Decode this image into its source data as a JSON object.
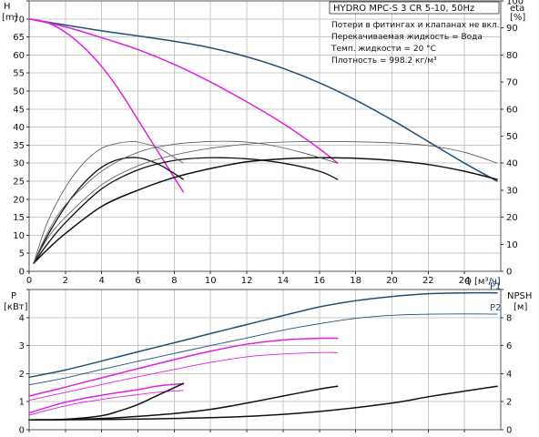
{
  "chart_data": [
    {
      "id": "head_efficiency",
      "type": "line",
      "title": "HYDRO MPC-S 3 CR 5-10, 50Hz",
      "annotations": [
        "Потери в фитингах и клапанах не вкл.",
        "Перекачиваемая жидкость = Вода",
        "Темп. жидкости = 20 °C",
        "Плотность = 998.2 кг/м³"
      ],
      "ylabel": "H",
      "yunit": "[m]",
      "y2label": "eta",
      "y2unit": "[%]",
      "xlabel": "Q",
      "xunit": "[м³/ч]",
      "xlim": [
        0,
        26
      ],
      "ylim": [
        0,
        75
      ],
      "y2lim": [
        0,
        100
      ],
      "xticks": [
        0,
        2,
        4,
        6,
        8,
        10,
        12,
        14,
        16,
        18,
        20,
        22,
        24
      ],
      "yticks": [
        0,
        5,
        10,
        15,
        20,
        25,
        30,
        35,
        40,
        45,
        50,
        55,
        60,
        65,
        70,
        75
      ],
      "ytick_labels": [
        "0",
        "5",
        "10",
        "15",
        "20",
        "25",
        "30",
        "35",
        "40",
        "45",
        "50",
        "55",
        "60",
        "65",
        "70",
        ""
      ],
      "y2ticks": [
        0,
        10,
        20,
        30,
        40,
        50,
        60,
        70,
        80,
        90,
        100
      ],
      "grid": true,
      "series": [
        {
          "color": "#1f4e79",
          "width": 1.5,
          "axis": "y",
          "points": [
            [
              0,
              70
            ],
            [
              2,
              68.3
            ],
            [
              4,
              66.7
            ],
            [
              6,
              65.3
            ],
            [
              8,
              63.8
            ],
            [
              10,
              62
            ],
            [
              12,
              59.5
            ],
            [
              14,
              56.3
            ],
            [
              16,
              52.3
            ],
            [
              18,
              47.5
            ],
            [
              20,
              42
            ],
            [
              22,
              36
            ],
            [
              24,
              30
            ],
            [
              25.8,
              25
            ]
          ]
        },
        {
          "color": "#e020e0",
          "width": 1.5,
          "axis": "y",
          "points": [
            [
              0,
              70
            ],
            [
              2,
              67.8
            ],
            [
              4,
              64.8
            ],
            [
              6,
              61.5
            ],
            [
              8,
              57.4
            ],
            [
              10,
              52.5
            ],
            [
              12,
              47
            ],
            [
              14,
              41
            ],
            [
              16,
              34
            ],
            [
              17,
              30
            ]
          ]
        },
        {
          "color": "#e020e0",
          "width": 1.5,
          "axis": "y",
          "points": [
            [
              0,
              70
            ],
            [
              1,
              69
            ],
            [
              2,
              66.3
            ],
            [
              3,
              62.2
            ],
            [
              4,
              56.8
            ],
            [
              5,
              50
            ],
            [
              6,
              42
            ],
            [
              7,
              34
            ],
            [
              8,
              26
            ],
            [
              8.5,
              22
            ]
          ]
        },
        {
          "color": "#111111",
          "width": 1.3,
          "axis": "y2",
          "points": [
            [
              0.25,
              3
            ],
            [
              1,
              13
            ],
            [
              2,
              24
            ],
            [
              3,
              32.5
            ],
            [
              4,
              38.5
            ],
            [
              5,
              41.5
            ],
            [
              6,
              42
            ],
            [
              7,
              40
            ],
            [
              7.8,
              37
            ],
            [
              8.5,
              34
            ]
          ]
        },
        {
          "color": "#111111",
          "width": 1.3,
          "axis": "y2",
          "points": [
            [
              0.25,
              3
            ],
            [
              1,
              10
            ],
            [
              2,
              18
            ],
            [
              4,
              30.5
            ],
            [
              6,
              37.5
            ],
            [
              8,
              41
            ],
            [
              10,
              42
            ],
            [
              12,
              41.6
            ],
            [
              14,
              40
            ],
            [
              16,
              37
            ],
            [
              17,
              34
            ]
          ]
        },
        {
          "color": "#111111",
          "width": 1.5,
          "axis": "y2",
          "points": [
            [
              0.25,
              3
            ],
            [
              1,
              8
            ],
            [
              2,
              14
            ],
            [
              4,
              24
            ],
            [
              6,
              30
            ],
            [
              8,
              34.7
            ],
            [
              10,
              38
            ],
            [
              12,
              40.5
            ],
            [
              14,
              41.6
            ],
            [
              16,
              42
            ],
            [
              18,
              41.8
            ],
            [
              20,
              41
            ],
            [
              22,
              39.5
            ],
            [
              24,
              37
            ],
            [
              25.8,
              34
            ]
          ]
        },
        {
          "color": "#555555",
          "width": 0.8,
          "axis": "y2",
          "points": [
            [
              0.25,
              3
            ],
            [
              1,
              18
            ],
            [
              2,
              31
            ],
            [
              3,
              40
            ],
            [
              4,
              45.5
            ],
            [
              5,
              47.5
            ],
            [
              5.7,
              48
            ],
            [
              6,
              47.8
            ],
            [
              7,
              46
            ],
            [
              7.8,
              43
            ],
            [
              8.5,
              40
            ]
          ]
        },
        {
          "color": "#555555",
          "width": 0.8,
          "axis": "y2",
          "points": [
            [
              0.25,
              3
            ],
            [
              1,
              14
            ],
            [
              2,
              24.5
            ],
            [
              4,
              37
            ],
            [
              6,
              44
            ],
            [
              8,
              47
            ],
            [
              10,
              48
            ],
            [
              11.5,
              48
            ],
            [
              13,
              47
            ],
            [
              15,
              44
            ],
            [
              17,
              40
            ]
          ]
        },
        {
          "color": "#555555",
          "width": 0.8,
          "axis": "y2",
          "points": [
            [
              0.25,
              3
            ],
            [
              1,
              12
            ],
            [
              2,
              20
            ],
            [
              4,
              32
            ],
            [
              6,
              39
            ],
            [
              8,
              43
            ],
            [
              10,
              45.5
            ],
            [
              12,
              47
            ],
            [
              14,
              47.8
            ],
            [
              17,
              48
            ],
            [
              20,
              47.5
            ],
            [
              22,
              46.5
            ],
            [
              24,
              44
            ],
            [
              25.8,
              40
            ]
          ]
        }
      ]
    },
    {
      "id": "power_npsh",
      "type": "line",
      "ylabel": "P",
      "yunit": "[кВт]",
      "y2label": "NPSH",
      "y2unit": "[м]",
      "xlim": [
        0,
        26
      ],
      "ylim": [
        0,
        5
      ],
      "y2lim": [
        0,
        10
      ],
      "yticks": [
        0,
        1,
        2,
        3,
        4,
        5
      ],
      "ytick_labels": [
        "0",
        "1",
        "2",
        "3",
        "4",
        ""
      ],
      "y2ticks": [
        0,
        2,
        4,
        6,
        8,
        10
      ],
      "y2tick_labels": [
        "0",
        "2",
        "4",
        "6",
        "8",
        ""
      ],
      "grid": true,
      "series": [
        {
          "name": "P1",
          "color": "#1f4e79",
          "width": 1.5,
          "axis": "y",
          "label": "P1",
          "points": [
            [
              0,
              1.87
            ],
            [
              2,
              2.13
            ],
            [
              4,
              2.45
            ],
            [
              6,
              2.78
            ],
            [
              8,
              3.1
            ],
            [
              10,
              3.43
            ],
            [
              12,
              3.75
            ],
            [
              14,
              4.07
            ],
            [
              16,
              4.38
            ],
            [
              18,
              4.6
            ],
            [
              20,
              4.75
            ],
            [
              22,
              4.85
            ],
            [
              24,
              4.88
            ],
            [
              25.8,
              4.88
            ]
          ]
        },
        {
          "name": "P2",
          "color": "#1f4e79",
          "width": 0.9,
          "axis": "y",
          "label": "P2",
          "points": [
            [
              0,
              1.6
            ],
            [
              2,
              1.85
            ],
            [
              4,
              2.15
            ],
            [
              6,
              2.44
            ],
            [
              8,
              2.72
            ],
            [
              10,
              3.0
            ],
            [
              12,
              3.27
            ],
            [
              14,
              3.55
            ],
            [
              16,
              3.78
            ],
            [
              18,
              3.97
            ],
            [
              20,
              4.08
            ],
            [
              22,
              4.12
            ],
            [
              24,
              4.13
            ],
            [
              25.8,
              4.12
            ]
          ]
        },
        {
          "color": "#e020e0",
          "width": 1.5,
          "axis": "y",
          "points": [
            [
              0,
              1.2
            ],
            [
              2,
              1.52
            ],
            [
              4,
              1.85
            ],
            [
              6,
              2.18
            ],
            [
              8,
              2.5
            ],
            [
              10,
              2.8
            ],
            [
              12,
              3.05
            ],
            [
              14,
              3.2
            ],
            [
              16,
              3.26
            ],
            [
              17,
              3.26
            ]
          ]
        },
        {
          "color": "#e020e0",
          "width": 0.9,
          "axis": "y",
          "points": [
            [
              0,
              1.05
            ],
            [
              2,
              1.33
            ],
            [
              4,
              1.61
            ],
            [
              6,
              1.89
            ],
            [
              8,
              2.15
            ],
            [
              10,
              2.4
            ],
            [
              12,
              2.6
            ],
            [
              14,
              2.7
            ],
            [
              16,
              2.75
            ],
            [
              17,
              2.75
            ]
          ]
        },
        {
          "color": "#e020e0",
          "width": 1.5,
          "axis": "y",
          "points": [
            [
              0,
              0.6
            ],
            [
              2,
              0.98
            ],
            [
              4,
              1.23
            ],
            [
              6,
              1.43
            ],
            [
              7,
              1.55
            ],
            [
              8,
              1.62
            ],
            [
              8.5,
              1.63
            ]
          ]
        },
        {
          "color": "#e020e0",
          "width": 0.9,
          "axis": "y",
          "points": [
            [
              0,
              0.52
            ],
            [
              2,
              0.85
            ],
            [
              4,
              1.08
            ],
            [
              6,
              1.25
            ],
            [
              7,
              1.33
            ],
            [
              8,
              1.38
            ],
            [
              8.5,
              1.4
            ]
          ]
        },
        {
          "color": "#111111",
          "width": 1.5,
          "axis": "y2",
          "points": [
            [
              0,
              0.7
            ],
            [
              2,
              0.75
            ],
            [
              4,
              1.0
            ],
            [
              5,
              1.35
            ],
            [
              6,
              1.8
            ],
            [
              7,
              2.4
            ],
            [
              8,
              3.0
            ],
            [
              8.5,
              3.3
            ]
          ]
        },
        {
          "color": "#111111",
          "width": 1.5,
          "axis": "y2",
          "points": [
            [
              0,
              0.7
            ],
            [
              2,
              0.72
            ],
            [
              4,
              0.8
            ],
            [
              6,
              0.95
            ],
            [
              8,
              1.15
            ],
            [
              10,
              1.45
            ],
            [
              12,
              1.9
            ],
            [
              14,
              2.4
            ],
            [
              16,
              2.9
            ],
            [
              17,
              3.1
            ]
          ]
        },
        {
          "color": "#111111",
          "width": 1.5,
          "axis": "y2",
          "points": [
            [
              0,
              0.7
            ],
            [
              4,
              0.73
            ],
            [
              8,
              0.8
            ],
            [
              12,
              0.95
            ],
            [
              16,
              1.3
            ],
            [
              20,
              1.9
            ],
            [
              22,
              2.35
            ],
            [
              24,
              2.75
            ],
            [
              25.8,
              3.1
            ]
          ]
        }
      ]
    }
  ]
}
